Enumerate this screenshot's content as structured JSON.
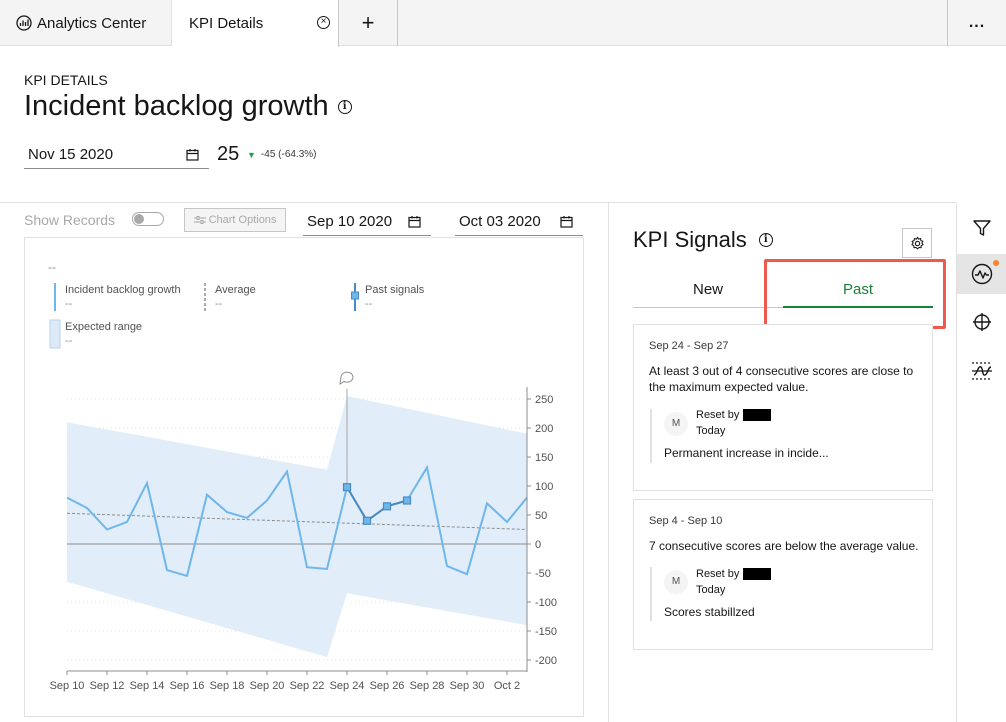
{
  "tabs": {
    "analytics_label": "Analytics Center",
    "kpi_label": "KPI Details",
    "close_symbol": "×",
    "add_symbol": "+",
    "more_symbol": "..."
  },
  "header": {
    "eyebrow": "KPI DETAILS",
    "title": "Incident backlog growth",
    "info_symbol": "i",
    "date": "Nov 15 2020",
    "kpi_value": "25",
    "kpi_delta_arrow": "▼",
    "kpi_delta": "-45 (-64.3%)"
  },
  "toolbar": {
    "show_records": "Show Records",
    "chart_options": "Chart Options",
    "start_date": "Sep 10 2020",
    "end_date": "Oct 03 2020"
  },
  "legend": {
    "header_value": "--",
    "items": [
      {
        "label": "Incident backlog growth",
        "value": "--"
      },
      {
        "label": "Average",
        "value": "--"
      },
      {
        "label": "Past signals",
        "value": "--"
      },
      {
        "label": "Expected range",
        "value": "--"
      }
    ]
  },
  "colors": {
    "series": "#6fb6ea",
    "signal": "#4a8ac2",
    "band": "#dceaf7",
    "accent_green": "#198038",
    "highlight": "#ee5b4e",
    "notification": "#ff832b"
  },
  "chart_data": {
    "type": "line",
    "x": [
      "Sep 10",
      "Sep 11",
      "Sep 12",
      "Sep 13",
      "Sep 14",
      "Sep 15",
      "Sep 16",
      "Sep 17",
      "Sep 18",
      "Sep 19",
      "Sep 20",
      "Sep 21",
      "Sep 22",
      "Sep 23",
      "Sep 24",
      "Sep 25",
      "Sep 26",
      "Sep 27",
      "Sep 28",
      "Sep 29",
      "Sep 30",
      "Oct 1",
      "Oct 2",
      "Oct 3"
    ],
    "x_tick_labels": [
      "Sep 10",
      "Sep 12",
      "Sep 14",
      "Sep 16",
      "Sep 18",
      "Sep 20",
      "Sep 22",
      "Sep 24",
      "Sep 26",
      "Sep 28",
      "Sep 30",
      "Oct 2"
    ],
    "y_tick_labels": [
      "250",
      "200",
      "150",
      "100",
      "50",
      "0",
      "-50",
      "-100",
      "-150",
      "-200"
    ],
    "ylim": [
      -220,
      270
    ],
    "series": [
      {
        "values": [
          80,
          62,
          25,
          38,
          105,
          -45,
          -55,
          85,
          55,
          45,
          75,
          125,
          -40,
          -43,
          98,
          40,
          65,
          75,
          132,
          -38,
          -52,
          70,
          38,
          80
        ]
      }
    ],
    "average": {
      "start": 53,
      "end": 25
    },
    "expected_range": {
      "upper": [
        {
          "x": 0,
          "y": 210
        },
        {
          "x": 13,
          "y": 128
        },
        {
          "x": 14,
          "y": 255
        },
        {
          "x": 23,
          "y": 190
        }
      ],
      "lower": [
        {
          "x": 0,
          "y": -65
        },
        {
          "x": 13,
          "y": -195
        },
        {
          "x": 14,
          "y": -85
        },
        {
          "x": 23,
          "y": -140
        }
      ]
    },
    "past_signals": [
      {
        "x": 14,
        "y": 98
      },
      {
        "x": 15,
        "y": 40
      },
      {
        "x": 16,
        "y": 65
      },
      {
        "x": 17,
        "y": 75
      }
    ],
    "annotation_x": 14
  },
  "signals": {
    "title": "KPI Signals",
    "info_symbol": "i",
    "tab_new": "New",
    "tab_past": "Past",
    "cards": [
      {
        "date": "Sep 24 - Sep 27",
        "text": "At least 3 out of 4 consecutive scores are close to the maximum expected value.",
        "avatar": "M",
        "reset_by": "Reset by",
        "reset_when": "Today",
        "note": "Permanent increase in incide..."
      },
      {
        "date": "Sep 4 - Sep 10",
        "text": "7 consecutive scores are below the average value.",
        "avatar": "M",
        "reset_by": "Reset by",
        "reset_when": "Today",
        "note": "Scores stabillzed"
      }
    ]
  }
}
